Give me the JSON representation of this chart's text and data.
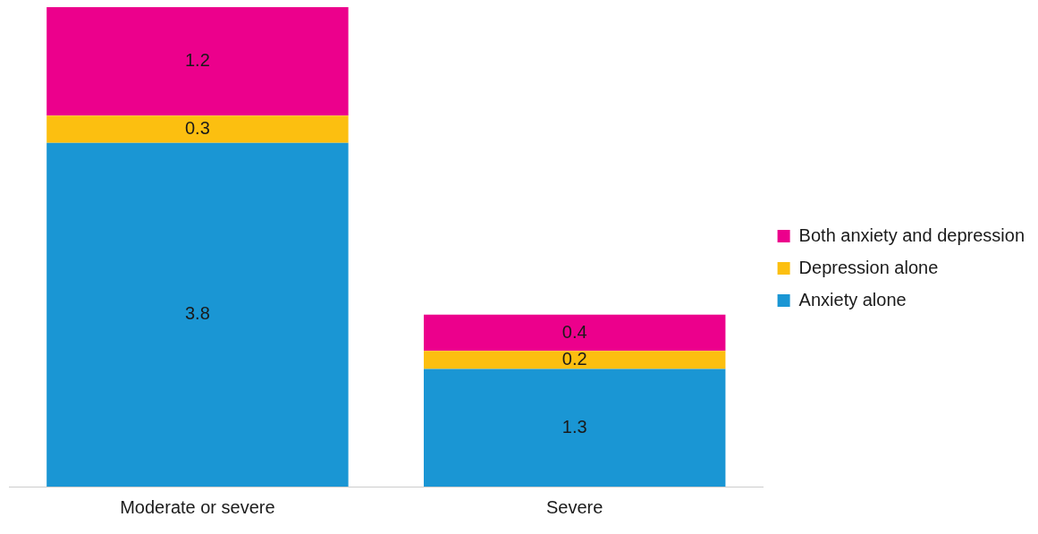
{
  "chart_data": {
    "type": "bar",
    "stacked": true,
    "categories": [
      "Moderate or severe",
      "Severe"
    ],
    "series": [
      {
        "name": "Anxiety alone",
        "color": "#1a96d4",
        "values": [
          3.8,
          1.3
        ]
      },
      {
        "name": "Depression alone",
        "color": "#fcbf10",
        "values": [
          0.3,
          0.2
        ]
      },
      {
        "name": "Both anxiety and depression",
        "color": "#ec008c",
        "values": [
          1.2,
          0.4
        ]
      }
    ],
    "data_labels": true,
    "legend": "right",
    "grid": false
  }
}
